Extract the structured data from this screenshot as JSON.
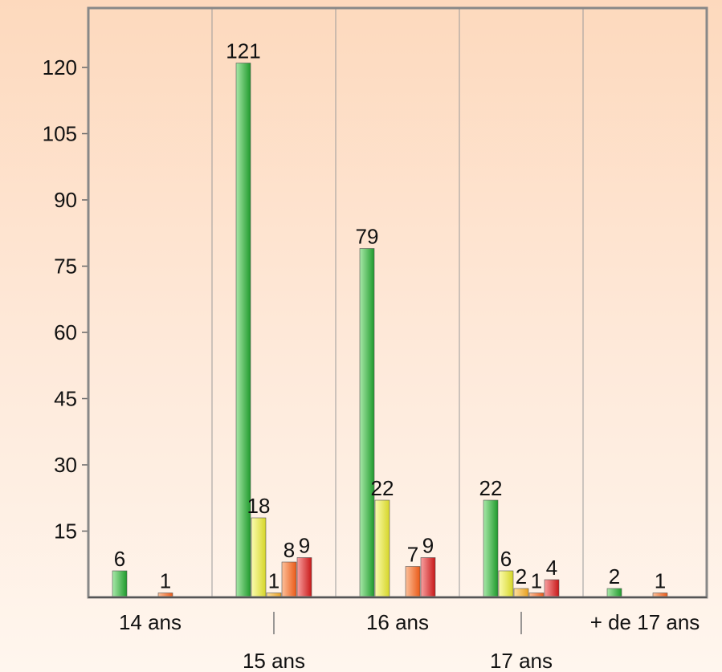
{
  "chart_data": {
    "type": "bar",
    "title": "",
    "xlabel": "",
    "ylabel": "",
    "categories": [
      "14 ans",
      "15 ans",
      "16 ans",
      "17 ans",
      "+ de 17 ans"
    ],
    "yticks": [
      15,
      30,
      45,
      60,
      75,
      90,
      105,
      120
    ],
    "ylim": [
      0,
      132
    ],
    "grid": "vertical-separators",
    "legend": "none",
    "series": [
      {
        "color": "#3cb043",
        "values": [
          6,
          121,
          79,
          22,
          2
        ]
      },
      {
        "color": "#e8e83a",
        "values": [
          0,
          18,
          22,
          6,
          0
        ]
      },
      {
        "color": "#f0b040",
        "values": [
          0,
          1,
          0,
          2,
          0
        ]
      },
      {
        "color": "#f07030",
        "values": [
          1,
          8,
          7,
          1,
          1
        ]
      },
      {
        "color": "#dd2a2a",
        "values": [
          0,
          9,
          9,
          4,
          0
        ]
      }
    ]
  }
}
